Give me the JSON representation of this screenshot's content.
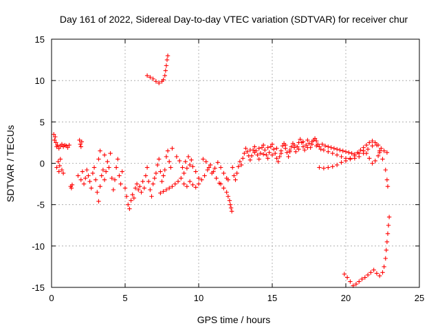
{
  "chart_data": {
    "type": "scatter",
    "title": "Day 161 of 2022, Sidereal Day-to-day VTEC variation (SDTVAR) for receiver chur",
    "xlabel": "GPS time / hours",
    "ylabel": "SDTVAR / TECUs",
    "xlim": [
      0,
      25
    ],
    "ylim": [
      -15,
      15
    ],
    "xticks": [
      0,
      5,
      10,
      15,
      20,
      25
    ],
    "yticks": [
      -15,
      -10,
      -5,
      0,
      5,
      10,
      15
    ],
    "grid": true,
    "marker": "+",
    "color": "#ff0000",
    "series": [
      {
        "name": "SDTVAR",
        "points": [
          [
            0.15,
            3.5
          ],
          [
            0.2,
            2.8
          ],
          [
            0.25,
            3.2
          ],
          [
            0.3,
            2.5
          ],
          [
            0.35,
            2.0
          ],
          [
            0.4,
            2.2
          ],
          [
            0.5,
            1.8
          ],
          [
            0.6,
            2.1
          ],
          [
            0.7,
            2.3
          ],
          [
            0.8,
            2.0
          ],
          [
            0.9,
            2.2
          ],
          [
            1.0,
            2.1
          ],
          [
            1.1,
            1.9
          ],
          [
            1.2,
            2.2
          ],
          [
            0.35,
            -0.5
          ],
          [
            0.45,
            0.2
          ],
          [
            0.5,
            -1.0
          ],
          [
            0.55,
            -0.3
          ],
          [
            0.6,
            0.5
          ],
          [
            0.7,
            -0.8
          ],
          [
            0.8,
            -1.2
          ],
          [
            1.3,
            -2.8
          ],
          [
            1.35,
            -3.0
          ],
          [
            1.4,
            -2.6
          ],
          [
            1.9,
            2.8
          ],
          [
            1.95,
            2.3
          ],
          [
            2.0,
            2.0
          ],
          [
            2.05,
            2.6
          ],
          [
            1.8,
            -1.5
          ],
          [
            2.0,
            -2.0
          ],
          [
            2.1,
            -1.0
          ],
          [
            2.2,
            -2.5
          ],
          [
            2.3,
            -1.8
          ],
          [
            2.4,
            -0.8
          ],
          [
            2.5,
            -1.5
          ],
          [
            2.6,
            -2.2
          ],
          [
            2.7,
            -3.0
          ],
          [
            2.8,
            -1.2
          ],
          [
            2.9,
            -0.5
          ],
          [
            3.0,
            -2.0
          ],
          [
            3.1,
            -3.5
          ],
          [
            3.2,
            -4.6
          ],
          [
            3.3,
            -2.8
          ],
          [
            3.4,
            -1.5
          ],
          [
            3.5,
            -0.8
          ],
          [
            3.6,
            -2.0
          ],
          [
            3.7,
            -1.0
          ],
          [
            3.8,
            0.2
          ],
          [
            3.9,
            -0.5
          ],
          [
            4.0,
            1.2
          ],
          [
            4.1,
            -1.8
          ],
          [
            4.2,
            -3.2
          ],
          [
            4.3,
            -2.0
          ],
          [
            4.4,
            -0.5
          ],
          [
            4.5,
            0.5
          ],
          [
            4.6,
            -1.5
          ],
          [
            4.7,
            -2.5
          ],
          [
            4.8,
            -1.0
          ],
          [
            3.3,
            1.5
          ],
          [
            3.6,
            1.0
          ],
          [
            3.2,
            0.5
          ],
          [
            5.0,
            -3.0
          ],
          [
            5.1,
            -4.0
          ],
          [
            5.2,
            -5.0
          ],
          [
            5.3,
            -5.5
          ],
          [
            5.4,
            -4.5
          ],
          [
            5.5,
            -3.8
          ],
          [
            5.6,
            -4.2
          ],
          [
            5.7,
            -3.0
          ],
          [
            5.8,
            -2.5
          ],
          [
            5.9,
            -3.2
          ],
          [
            6.0,
            -2.8
          ],
          [
            6.1,
            -3.5
          ],
          [
            6.2,
            -2.2
          ],
          [
            6.3,
            -3.0
          ],
          [
            6.4,
            -1.5
          ],
          [
            6.5,
            -0.5
          ],
          [
            6.6,
            -2.2
          ],
          [
            6.7,
            -3.2
          ],
          [
            6.8,
            -4.0
          ],
          [
            6.9,
            -2.5
          ],
          [
            7.0,
            -1.8
          ],
          [
            7.1,
            -1.2
          ],
          [
            7.2,
            -0.2
          ],
          [
            7.3,
            0.5
          ],
          [
            7.4,
            -1.0
          ],
          [
            7.5,
            -2.2
          ],
          [
            7.6,
            -1.5
          ],
          [
            7.7,
            -0.8
          ],
          [
            7.8,
            0.8
          ],
          [
            7.9,
            1.5
          ],
          [
            8.0,
            0.2
          ],
          [
            8.1,
            -0.5
          ],
          [
            8.2,
            1.8
          ],
          [
            6.5,
            10.6
          ],
          [
            6.7,
            10.4
          ],
          [
            6.9,
            10.2
          ],
          [
            7.1,
            9.9
          ],
          [
            7.3,
            9.7
          ],
          [
            7.5,
            9.9
          ],
          [
            7.6,
            10.1
          ],
          [
            7.7,
            10.6
          ],
          [
            7.75,
            11.2
          ],
          [
            7.8,
            11.8
          ],
          [
            7.85,
            12.5
          ],
          [
            7.9,
            13.0
          ],
          [
            7.4,
            -3.6
          ],
          [
            7.6,
            -3.4
          ],
          [
            7.8,
            -3.2
          ],
          [
            8.0,
            -3.0
          ],
          [
            8.2,
            -2.8
          ],
          [
            8.4,
            -2.5
          ],
          [
            8.6,
            -2.2
          ],
          [
            8.8,
            -1.8
          ],
          [
            9.0,
            -1.2
          ],
          [
            9.2,
            -0.6
          ],
          [
            9.4,
            -0.2
          ],
          [
            9.6,
            -0.4
          ],
          [
            9.8,
            -1.0
          ],
          [
            10.0,
            -1.8
          ],
          [
            8.5,
            0.8
          ],
          [
            8.7,
            0.3
          ],
          [
            8.9,
            -0.5
          ],
          [
            9.1,
            0.2
          ],
          [
            9.3,
            0.8
          ],
          [
            9.5,
            0.4
          ],
          [
            9.0,
            -2.5
          ],
          [
            9.2,
            -2.8
          ],
          [
            9.4,
            -2.2
          ],
          [
            9.6,
            -2.6
          ],
          [
            9.8,
            -2.9
          ],
          [
            10.0,
            -2.5
          ],
          [
            10.2,
            -2.0
          ],
          [
            10.4,
            -1.5
          ],
          [
            10.6,
            -0.8
          ],
          [
            10.8,
            -0.2
          ],
          [
            11.0,
            -1.0
          ],
          [
            11.2,
            -1.8
          ],
          [
            11.4,
            -2.4
          ],
          [
            10.3,
            0.5
          ],
          [
            10.5,
            0.2
          ],
          [
            10.7,
            -0.5
          ],
          [
            10.9,
            -1.2
          ],
          [
            11.1,
            -0.6
          ],
          [
            11.3,
            0.1
          ],
          [
            11.5,
            -0.5
          ],
          [
            11.7,
            -1.2
          ],
          [
            11.9,
            -1.8
          ],
          [
            12.0,
            -2.0
          ],
          [
            11.5,
            -2.5
          ],
          [
            11.7,
            -3.0
          ],
          [
            11.9,
            -3.5
          ],
          [
            12.0,
            -4.0
          ],
          [
            12.1,
            -4.5
          ],
          [
            12.15,
            -5.0
          ],
          [
            12.2,
            -5.4
          ],
          [
            12.25,
            -5.8
          ],
          [
            12.3,
            -0.5
          ],
          [
            12.4,
            -1.5
          ],
          [
            12.5,
            -2.0
          ],
          [
            12.6,
            -1.2
          ],
          [
            12.7,
            -0.4
          ],
          [
            12.8,
            0.2
          ],
          [
            12.9,
            -0.2
          ],
          [
            13.0,
            0.6
          ],
          [
            13.1,
            1.2
          ],
          [
            13.2,
            1.8
          ],
          [
            13.3,
            1.4
          ],
          [
            13.4,
            0.9
          ],
          [
            13.5,
            0.4
          ],
          [
            13.6,
            0.9
          ],
          [
            13.7,
            1.6
          ],
          [
            13.8,
            2.0
          ],
          [
            13.9,
            1.5
          ],
          [
            14.0,
            1.0
          ],
          [
            14.1,
            0.5
          ],
          [
            14.2,
            1.2
          ],
          [
            14.3,
            1.9
          ],
          [
            14.4,
            2.2
          ],
          [
            14.5,
            1.6
          ],
          [
            14.6,
            1.0
          ],
          [
            14.7,
            0.6
          ],
          [
            14.8,
            1.3
          ],
          [
            14.9,
            2.0
          ],
          [
            15.0,
            2.3
          ],
          [
            15.1,
            1.7
          ],
          [
            15.2,
            1.2
          ],
          [
            15.3,
            0.6
          ],
          [
            15.4,
            0.2
          ],
          [
            15.5,
            0.8
          ],
          [
            15.6,
            1.5
          ],
          [
            15.7,
            2.1
          ],
          [
            15.8,
            2.4
          ],
          [
            15.9,
            1.8
          ],
          [
            16.0,
            1.3
          ],
          [
            16.1,
            0.8
          ],
          [
            16.2,
            1.4
          ],
          [
            16.3,
            2.0
          ],
          [
            16.4,
            2.4
          ],
          [
            16.5,
            1.9
          ],
          [
            16.6,
            1.4
          ],
          [
            16.7,
            2.0
          ],
          [
            16.8,
            2.5
          ],
          [
            16.9,
            2.9
          ],
          [
            17.0,
            2.5
          ],
          [
            17.1,
            2.0
          ],
          [
            17.2,
            1.6
          ],
          [
            17.3,
            2.2
          ],
          [
            17.4,
            2.8
          ],
          [
            17.5,
            2.4
          ],
          [
            17.6,
            1.9
          ],
          [
            17.7,
            2.3
          ],
          [
            17.8,
            2.8
          ],
          [
            17.9,
            3.0
          ],
          [
            18.0,
            2.7
          ],
          [
            18.1,
            2.3
          ],
          [
            18.2,
            2.0
          ],
          [
            18.3,
            1.7
          ],
          [
            13.5,
            1.6
          ],
          [
            13.8,
            1.3
          ],
          [
            14.1,
            1.8
          ],
          [
            14.4,
            1.1
          ],
          [
            14.7,
            1.9
          ],
          [
            15.0,
            1.0
          ],
          [
            15.3,
            1.8
          ],
          [
            15.6,
            1.2
          ],
          [
            15.9,
            2.2
          ],
          [
            16.2,
            1.6
          ],
          [
            16.5,
            2.2
          ],
          [
            16.8,
            1.7
          ],
          [
            17.1,
            2.6
          ],
          [
            17.4,
            1.9
          ],
          [
            17.7,
            2.6
          ],
          [
            18.0,
            2.1
          ],
          [
            18.4,
            2.3
          ],
          [
            18.6,
            2.1
          ],
          [
            18.8,
            2.0
          ],
          [
            19.0,
            1.9
          ],
          [
            19.2,
            1.8
          ],
          [
            19.4,
            1.7
          ],
          [
            19.6,
            1.6
          ],
          [
            19.8,
            1.5
          ],
          [
            20.0,
            1.4
          ],
          [
            20.2,
            1.3
          ],
          [
            20.4,
            1.2
          ],
          [
            20.6,
            1.1
          ],
          [
            20.8,
            1.3
          ],
          [
            21.0,
            1.6
          ],
          [
            21.2,
            1.9
          ],
          [
            21.4,
            2.2
          ],
          [
            21.6,
            2.5
          ],
          [
            21.8,
            2.7
          ],
          [
            22.0,
            2.5
          ],
          [
            22.2,
            2.2
          ],
          [
            22.4,
            1.8
          ],
          [
            22.6,
            1.5
          ],
          [
            22.8,
            1.3
          ],
          [
            18.5,
            1.6
          ],
          [
            18.8,
            1.4
          ],
          [
            19.1,
            1.2
          ],
          [
            19.4,
            1.0
          ],
          [
            19.7,
            0.8
          ],
          [
            20.0,
            0.6
          ],
          [
            20.3,
            0.5
          ],
          [
            20.6,
            0.6
          ],
          [
            20.9,
            0.8
          ],
          [
            21.2,
            1.2
          ],
          [
            21.5,
            1.7
          ],
          [
            21.8,
            2.1
          ],
          [
            22.1,
            2.2
          ],
          [
            22.3,
            1.5
          ],
          [
            22.5,
            0.5
          ],
          [
            22.7,
            -0.8
          ],
          [
            22.8,
            -2.0
          ],
          [
            22.85,
            -2.8
          ],
          [
            18.2,
            -0.5
          ],
          [
            18.5,
            -0.6
          ],
          [
            18.8,
            -0.5
          ],
          [
            19.1,
            -0.4
          ],
          [
            19.4,
            -0.2
          ],
          [
            19.7,
            0.1
          ],
          [
            20.0,
            0.3
          ],
          [
            20.3,
            0.6
          ],
          [
            20.6,
            0.9
          ],
          [
            20.9,
            1.2
          ],
          [
            21.2,
            1.5
          ],
          [
            21.4,
            1.2
          ],
          [
            21.6,
            0.6
          ],
          [
            21.8,
            0.0
          ],
          [
            22.0,
            0.3
          ],
          [
            22.2,
            0.9
          ],
          [
            22.3,
            1.3
          ],
          [
            19.9,
            -13.4
          ],
          [
            20.1,
            -13.8
          ],
          [
            20.3,
            -14.3
          ],
          [
            20.5,
            -14.8
          ],
          [
            20.7,
            -14.6
          ],
          [
            20.9,
            -14.3
          ],
          [
            21.1,
            -14.0
          ],
          [
            21.3,
            -13.8
          ],
          [
            21.5,
            -13.5
          ],
          [
            21.7,
            -13.2
          ],
          [
            21.9,
            -12.9
          ],
          [
            22.1,
            -13.3
          ],
          [
            22.3,
            -13.6
          ],
          [
            22.5,
            -13.2
          ],
          [
            22.6,
            -12.5
          ],
          [
            22.7,
            -11.5
          ],
          [
            22.75,
            -10.5
          ],
          [
            22.8,
            -9.5
          ],
          [
            22.85,
            -8.5
          ],
          [
            22.9,
            -7.5
          ],
          [
            22.95,
            -6.5
          ]
        ]
      }
    ]
  }
}
